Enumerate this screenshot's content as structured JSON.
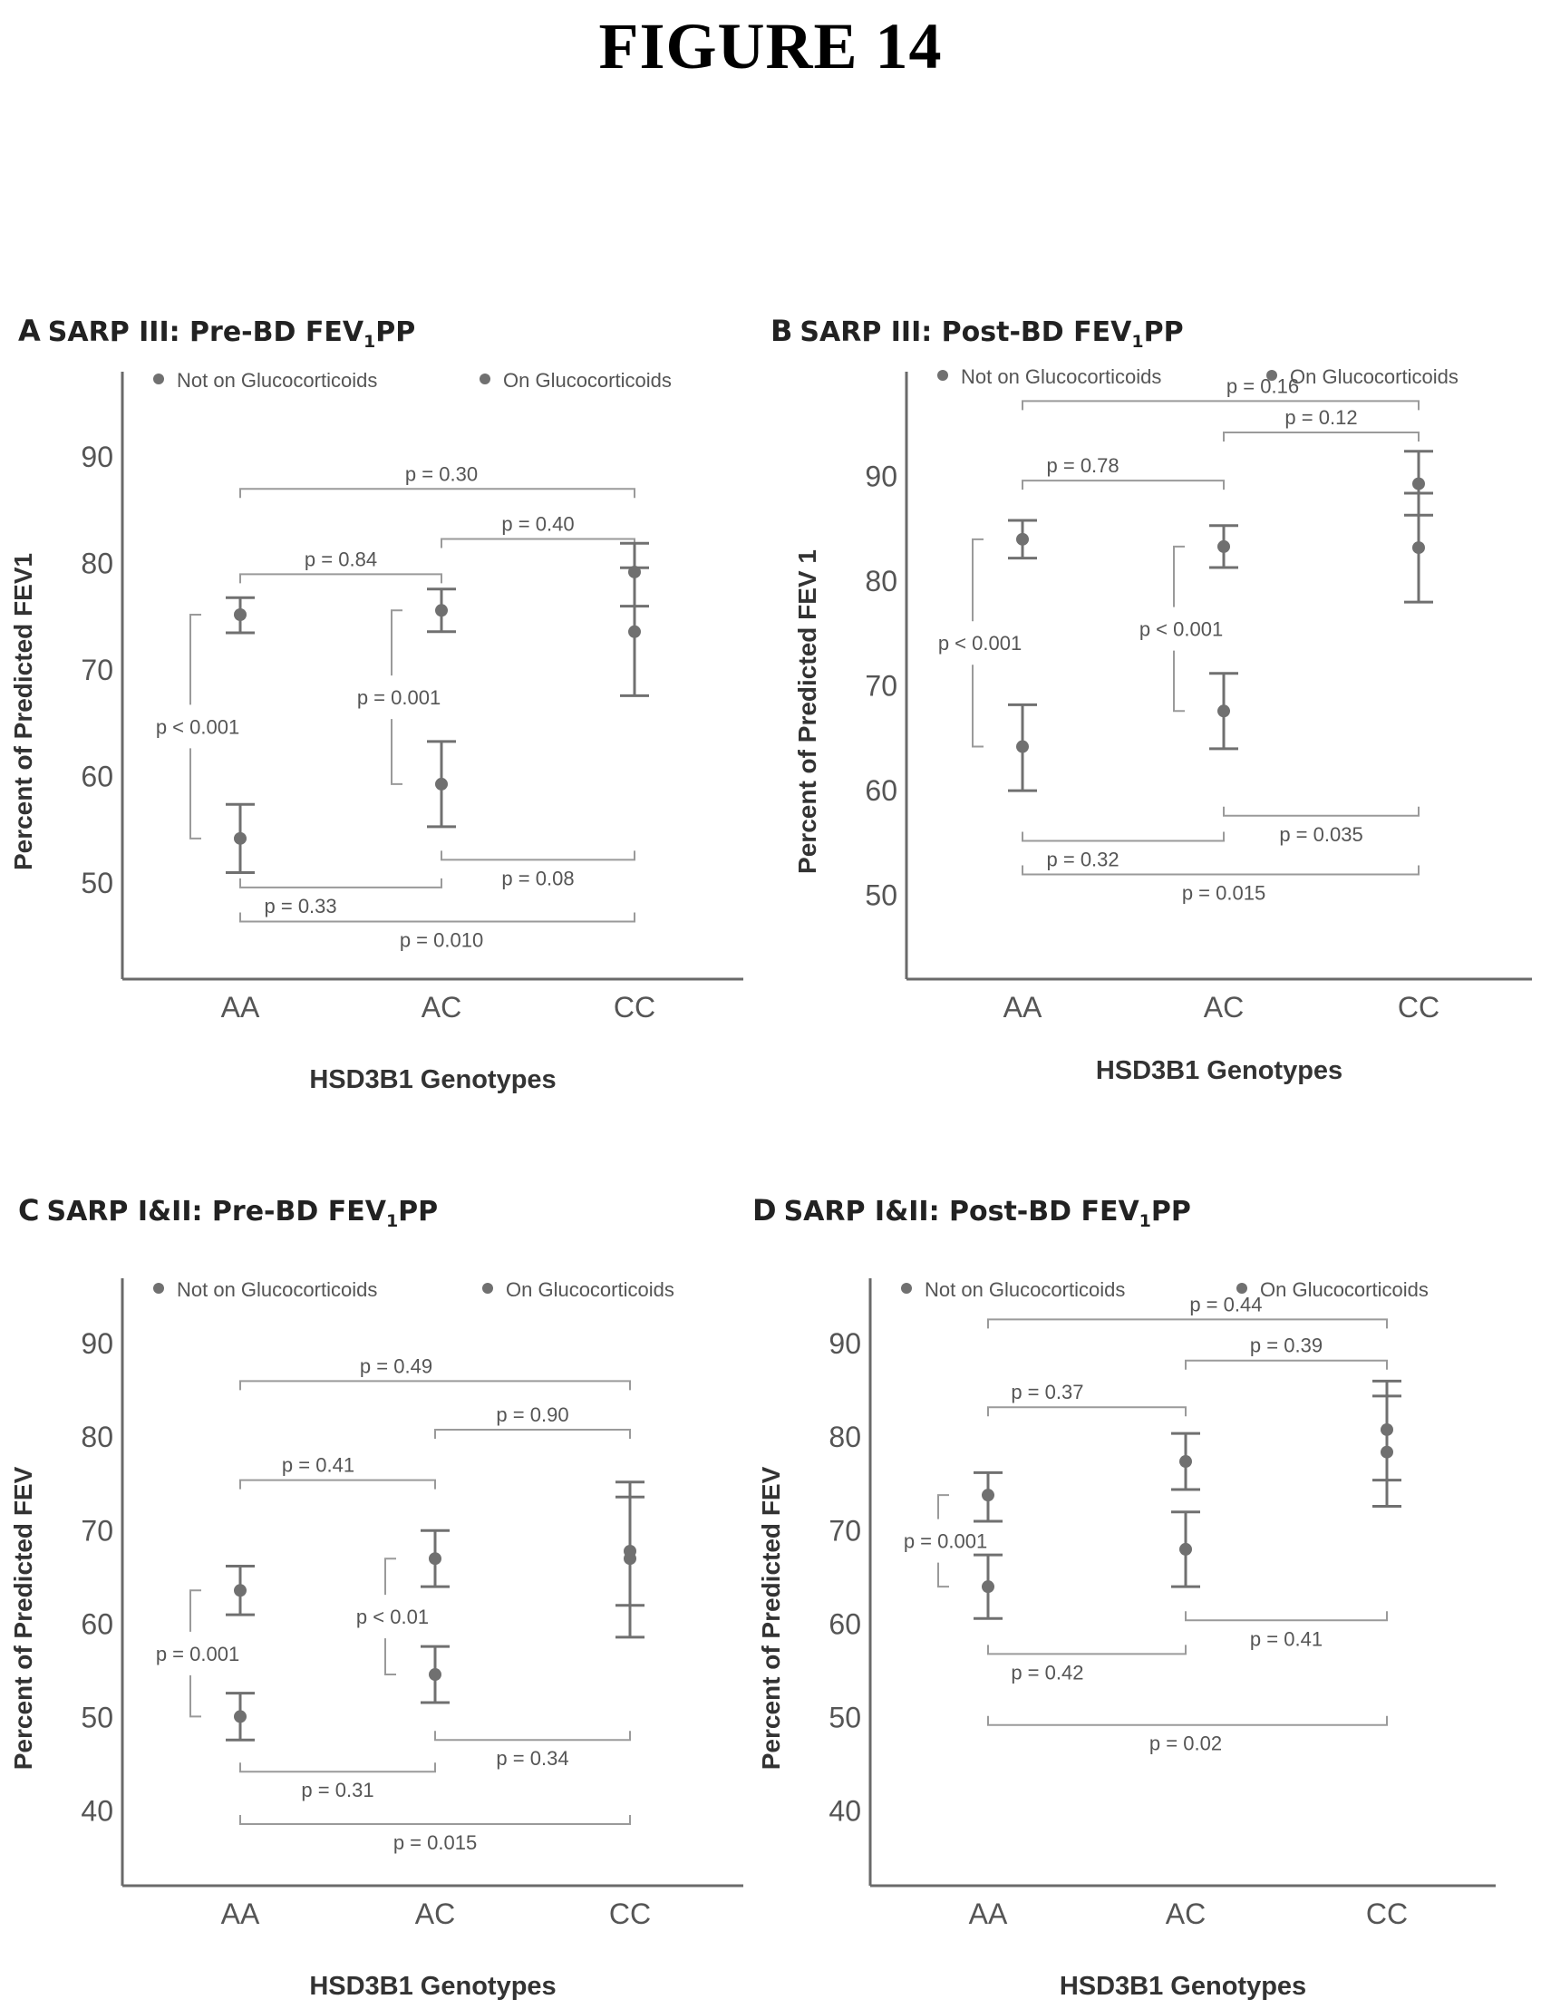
{
  "figure_title": "FIGURE 14",
  "colors": {
    "axis": "#6a6a6a",
    "marker": "#707070",
    "bracket": "#9a9a9a",
    "text": "#555555"
  },
  "chart_data": [
    {
      "id": "A",
      "type": "scatter",
      "letter": "A",
      "title_pre": "SARP III: Pre-BD FEV",
      "title_sub": "1",
      "title_post": "PP",
      "xlabel": "HSD3B1 Genotypes",
      "ylabel": "Percent of Predicted FEV1",
      "categories": [
        "AA",
        "AC",
        "CC"
      ],
      "yticks": [
        50,
        60,
        70,
        80,
        90
      ],
      "ylim": [
        41,
        98
      ],
      "legend": [
        "Not on Glucocorticoids",
        "On Glucocorticoids"
      ],
      "series": [
        {
          "name": "Not on Glucocorticoids",
          "values": [
            75.2,
            75.6,
            79.2
          ],
          "err_low": [
            73.5,
            73.6,
            76.0
          ],
          "err_high": [
            76.8,
            77.6,
            81.9
          ]
        },
        {
          "name": "On Glucocorticoids",
          "values": [
            54.2,
            59.3,
            73.6
          ],
          "err_low": [
            51.0,
            55.3,
            67.6
          ],
          "err_high": [
            57.4,
            63.3,
            79.6
          ]
        }
      ],
      "brackets": [
        {
          "label": "p = 0.30",
          "x1": 0,
          "x2": 2,
          "y": 87.0,
          "dir": "top",
          "lx": 1.0
        },
        {
          "label": "p = 0.40",
          "x1": 1,
          "x2": 2,
          "y": 82.3,
          "dir": "top",
          "lx": 1.5
        },
        {
          "label": "p = 0.84",
          "x1": 0,
          "x2": 1,
          "y": 79.0,
          "dir": "top",
          "lx": 0.5
        },
        {
          "label": "p = 0.08",
          "x1": 1,
          "x2": 2,
          "y": 52.2,
          "dir": "bottom",
          "lx": 1.5
        },
        {
          "label": "p = 0.33",
          "x1": 0,
          "x2": 1,
          "y": 49.6,
          "dir": "bottom",
          "lx": 0.3
        },
        {
          "label": "p = 0.010",
          "x1": 0,
          "x2": 2,
          "y": 46.4,
          "dir": "bottom",
          "lx": 1.0
        }
      ],
      "vbrackets": [
        {
          "label": "p < 0.001",
          "cat": 0,
          "y_top": 75.2,
          "y_bottom": 54.2
        },
        {
          "label": "p = 0.001",
          "cat": 1,
          "y_top": 75.6,
          "y_bottom": 59.3
        }
      ]
    },
    {
      "id": "B",
      "type": "scatter",
      "letter": "B",
      "title_pre": "SARP III: Post-BD FEV",
      "title_sub": "1",
      "title_post": "PP",
      "xlabel": "HSD3B1 Genotypes",
      "ylabel": "Percent of Predicted FEV 1",
      "categories": [
        "AA",
        "AC",
        "CC"
      ],
      "yticks": [
        50,
        60,
        70,
        80,
        90
      ],
      "ylim": [
        42,
        100
      ],
      "legend": [
        "Not on Glucocorticoids",
        "On Glucocorticoids"
      ],
      "series": [
        {
          "name": "Not on Glucocorticoids",
          "values": [
            84.0,
            83.3,
            89.3
          ],
          "err_low": [
            82.2,
            81.3,
            86.3
          ],
          "err_high": [
            85.8,
            85.3,
            92.4
          ]
        },
        {
          "name": "On Glucocorticoids",
          "values": [
            64.2,
            67.6,
            83.2
          ],
          "err_low": [
            60.0,
            64.0,
            78.0
          ],
          "err_high": [
            68.2,
            71.2,
            88.4
          ]
        }
      ],
      "brackets": [
        {
          "label": "p = 0.16",
          "x1": 0,
          "x2": 2,
          "y": 97.2,
          "dir": "top",
          "lx": 1.2
        },
        {
          "label": "p = 0.12",
          "x1": 1,
          "x2": 2,
          "y": 94.2,
          "dir": "top",
          "lx": 1.5
        },
        {
          "label": "p = 0.78",
          "x1": 0,
          "x2": 1,
          "y": 89.6,
          "dir": "top",
          "lx": 0.3
        },
        {
          "label": "p = 0.035",
          "x1": 1,
          "x2": 2,
          "y": 57.6,
          "dir": "bottom",
          "lx": 1.5
        },
        {
          "label": "p = 0.32",
          "x1": 0,
          "x2": 1,
          "y": 55.2,
          "dir": "bottom",
          "lx": 0.3
        },
        {
          "label": "p = 0.015",
          "x1": 0,
          "x2": 2,
          "y": 52.0,
          "dir": "bottom",
          "lx": 1.0
        }
      ],
      "vbrackets": [
        {
          "label": "p < 0.001",
          "cat": 0,
          "y_top": 84.0,
          "y_bottom": 64.2
        },
        {
          "label": "p < 0.001",
          "cat": 1,
          "y_top": 83.3,
          "y_bottom": 67.6
        }
      ]
    },
    {
      "id": "C",
      "type": "scatter",
      "letter": "C",
      "title_pre": "SARP I&II: Pre-BD FEV",
      "title_sub": "1",
      "title_post": "PP",
      "xlabel": "HSD3B1 Genotypes",
      "ylabel": "Percent of Predicted FEV",
      "categories": [
        "AA",
        "AC",
        "CC"
      ],
      "yticks": [
        40,
        50,
        60,
        70,
        80,
        90
      ],
      "ylim": [
        32,
        97
      ],
      "legend": [
        "Not on Glucocorticoids",
        "On Glucocorticoids"
      ],
      "series": [
        {
          "name": "Not on Glucocorticoids",
          "values": [
            63.6,
            67.0,
            67.8
          ],
          "err_low": [
            61.0,
            64.0,
            62.0
          ],
          "err_high": [
            66.2,
            70.0,
            73.6
          ]
        },
        {
          "name": "On Glucocorticoids",
          "values": [
            50.1,
            54.6,
            67.0
          ],
          "err_low": [
            47.6,
            51.6,
            58.6
          ],
          "err_high": [
            52.6,
            57.6,
            75.2
          ]
        }
      ],
      "brackets": [
        {
          "label": "p = 0.49",
          "x1": 0,
          "x2": 2,
          "y": 86.0,
          "dir": "top",
          "lx": 0.8
        },
        {
          "label": "p = 0.90",
          "x1": 1,
          "x2": 2,
          "y": 80.8,
          "dir": "top",
          "lx": 1.5
        },
        {
          "label": "p = 0.41",
          "x1": 0,
          "x2": 1,
          "y": 75.4,
          "dir": "top",
          "lx": 0.4
        },
        {
          "label": "p = 0.34",
          "x1": 1,
          "x2": 2,
          "y": 47.6,
          "dir": "bottom",
          "lx": 1.5
        },
        {
          "label": "p = 0.31",
          "x1": 0,
          "x2": 1,
          "y": 44.2,
          "dir": "bottom",
          "lx": 0.5
        },
        {
          "label": "p = 0.015",
          "x1": 0,
          "x2": 2,
          "y": 38.6,
          "dir": "bottom",
          "lx": 1.0
        }
      ],
      "vbrackets": [
        {
          "label": "p = 0.001",
          "cat": 0,
          "y_top": 63.6,
          "y_bottom": 50.1
        },
        {
          "label": "p < 0.01",
          "cat": 1,
          "y_top": 67.0,
          "y_bottom": 54.6
        }
      ]
    },
    {
      "id": "D",
      "type": "scatter",
      "letter": "D",
      "title_pre": "SARP I&II: Post-BD FEV",
      "title_sub": "1",
      "title_post": "PP",
      "xlabel": "HSD3B1 Genotypes",
      "ylabel": "Percent of Predicted FEV",
      "categories": [
        "AA",
        "AC",
        "CC"
      ],
      "yticks": [
        40,
        50,
        60,
        70,
        80,
        90
      ],
      "ylim": [
        32,
        97
      ],
      "legend": [
        "Not on Glucocorticoids",
        "On Glucocorticoids"
      ],
      "series": [
        {
          "name": "Not on Glucocorticoids",
          "values": [
            73.8,
            77.4,
            80.8
          ],
          "err_low": [
            71.0,
            74.4,
            75.4
          ],
          "err_high": [
            76.2,
            80.4,
            86.0
          ]
        },
        {
          "name": "On Glucocorticoids",
          "values": [
            64.0,
            68.0,
            78.4
          ],
          "err_low": [
            60.6,
            64.0,
            72.6
          ],
          "err_high": [
            67.4,
            72.0,
            84.4
          ]
        }
      ],
      "brackets": [
        {
          "label": "p = 0.44",
          "x1": 0,
          "x2": 2,
          "y": 92.6,
          "dir": "top",
          "lx": 1.2
        },
        {
          "label": "p = 0.39",
          "x1": 1,
          "x2": 2,
          "y": 88.2,
          "dir": "top",
          "lx": 1.5
        },
        {
          "label": "p = 0.37",
          "x1": 0,
          "x2": 1,
          "y": 83.2,
          "dir": "top",
          "lx": 0.3
        },
        {
          "label": "p = 0.41",
          "x1": 1,
          "x2": 2,
          "y": 60.4,
          "dir": "bottom",
          "lx": 1.5
        },
        {
          "label": "p = 0.42",
          "x1": 0,
          "x2": 1,
          "y": 56.8,
          "dir": "bottom",
          "lx": 0.3
        },
        {
          "label": "p = 0.02",
          "x1": 0,
          "x2": 2,
          "y": 49.2,
          "dir": "bottom",
          "lx": 1.0
        }
      ],
      "vbrackets": [
        {
          "label": "p = 0.001",
          "cat": 0,
          "y_top": 73.8,
          "y_bottom": 64.0
        }
      ]
    }
  ]
}
